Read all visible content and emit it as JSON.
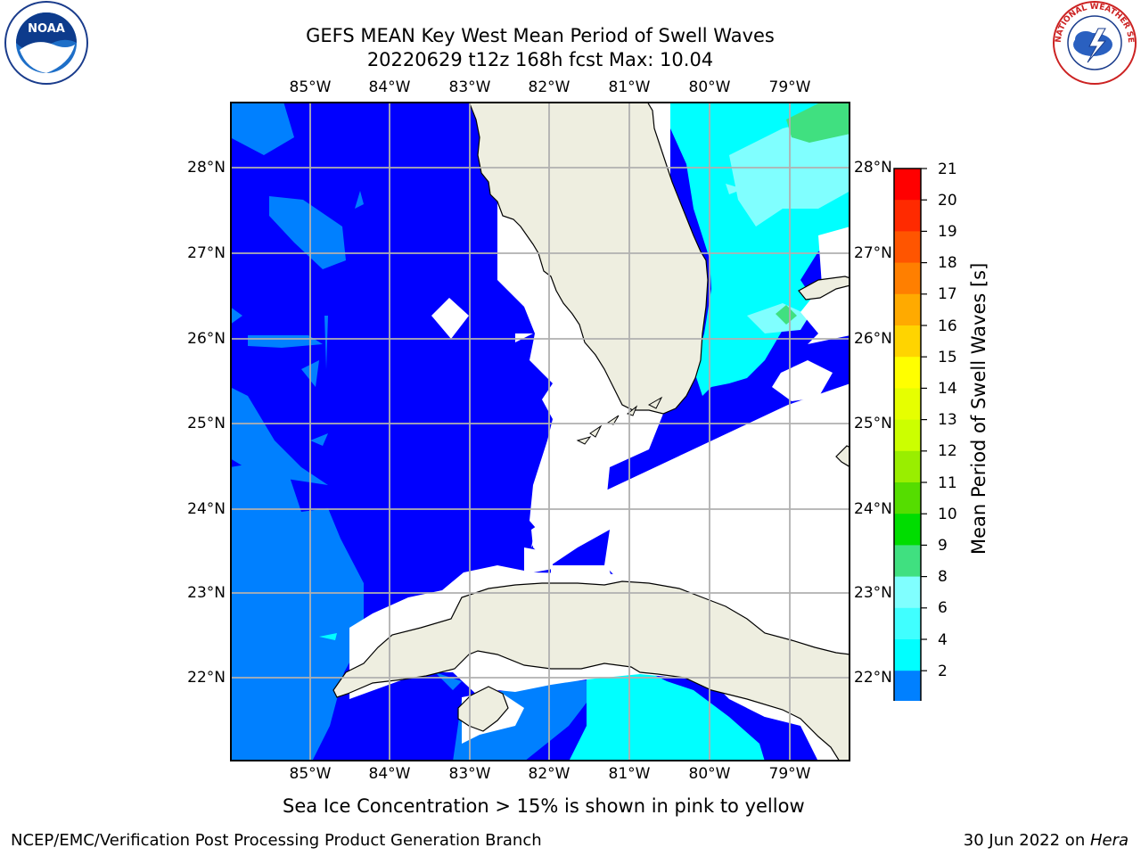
{
  "header": {
    "title_line1": "GEFS MEAN Key West Mean Period of Swell Waves",
    "title_line2": "20220629 t12z 168h fcst   Max: 10.04"
  },
  "map": {
    "lon_labels": [
      "85°W",
      "84°W",
      "83°W",
      "82°W",
      "81°W",
      "80°W",
      "79°W"
    ],
    "lat_labels": [
      "28°N",
      "27°N",
      "26°N",
      "25°N",
      "24°N",
      "23°N",
      "22°N"
    ],
    "colors": {
      "land": "#eeeee0",
      "no_data": "#ffffff",
      "swell_2_4": "#0000ff",
      "swell_4_6": "#0080ff",
      "swell_6_8": "#00ffff",
      "swell_8_9": "#80ffff",
      "swell_9_10": "#40e080",
      "grid": "#b0b0b0"
    }
  },
  "colorbar": {
    "label": "Mean Period of Swell Waves [s]",
    "ticks": [
      "21",
      "20",
      "19",
      "18",
      "17",
      "16",
      "15",
      "14",
      "13",
      "12",
      "11",
      "10",
      "9",
      "8",
      "6",
      "4",
      "2"
    ],
    "colors": [
      "#ff0000",
      "#ff2a00",
      "#ff5500",
      "#ff7f00",
      "#ffaa00",
      "#ffd400",
      "#ffff00",
      "#e6ff00",
      "#ccff00",
      "#99ee00",
      "#55dd00",
      "#00dd00",
      "#40e080",
      "#80ffff",
      "#40ffff",
      "#00ffff",
      "#0080ff"
    ],
    "extend_color": "#0000ff"
  },
  "note": "Sea Ice Concentration > 15% is shown in pink to yellow",
  "footer": {
    "left": "NCEP/EMC/Verification Post Processing Product Generation Branch",
    "date": "30 Jun 2022 on ",
    "machine": "Hera"
  },
  "logos": {
    "noaa_text": "NOAA",
    "nws_text": "NATIONAL WEATHER SERVICE"
  }
}
